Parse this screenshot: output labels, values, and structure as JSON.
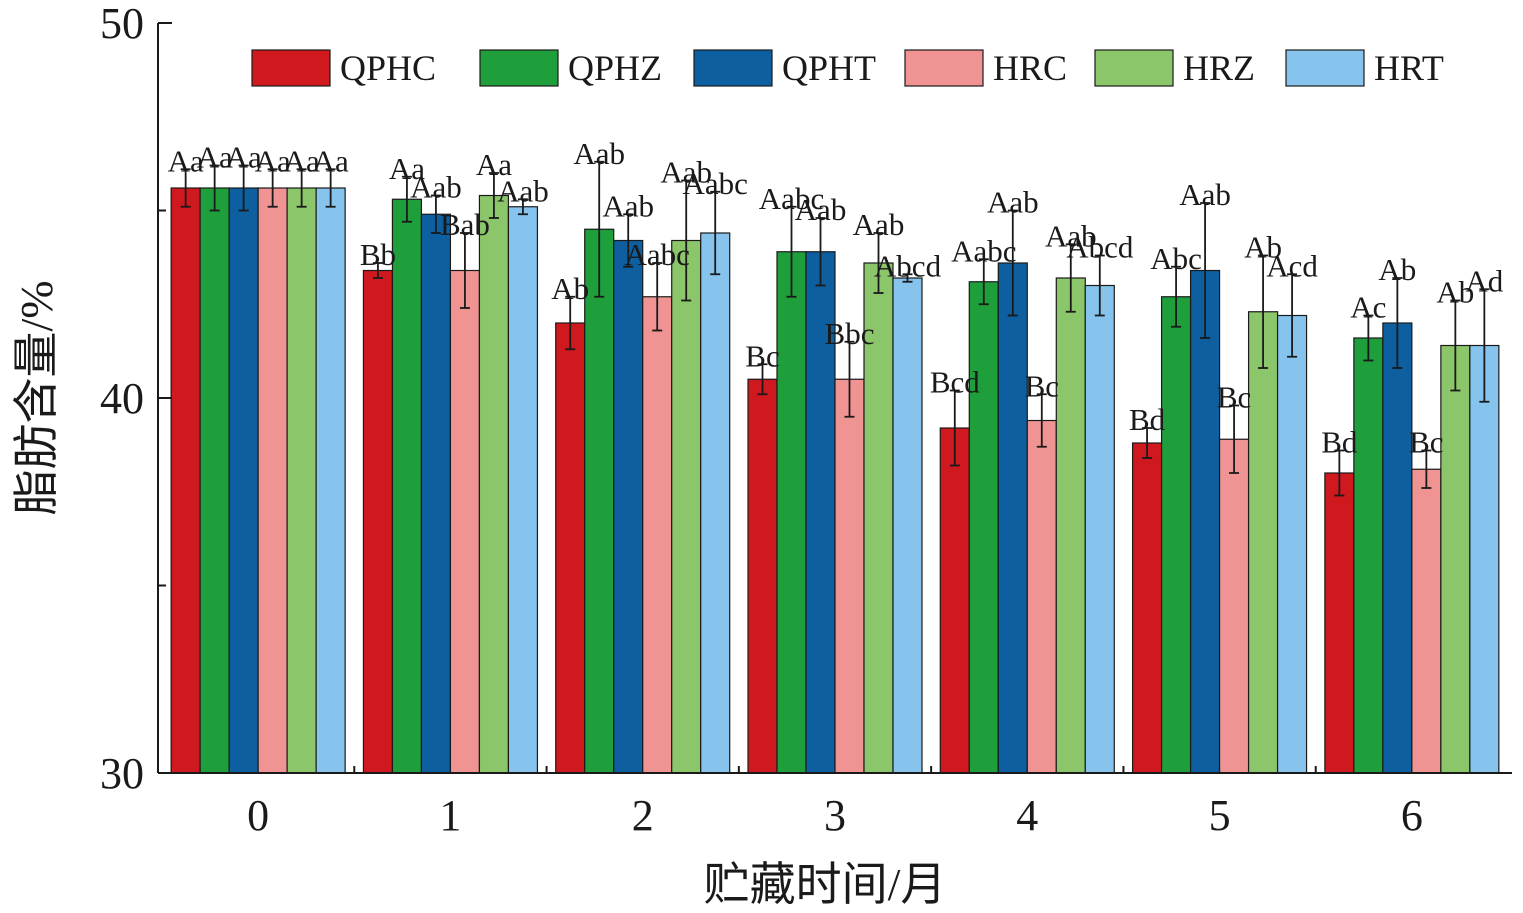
{
  "chart_data": {
    "type": "bar",
    "title": "",
    "xlabel": "贮藏时间/月",
    "ylabel": "脂肪含量/%",
    "ylim": [
      30,
      50
    ],
    "yticks": [
      30,
      40,
      50
    ],
    "categories": [
      "0",
      "1",
      "2",
      "3",
      "4",
      "5",
      "6"
    ],
    "legend_position": "top-right",
    "series": [
      {
        "name": "QPHC",
        "color": "#d0181f",
        "values": [
          45.6,
          43.4,
          42.0,
          40.5,
          39.2,
          38.8,
          38.0
        ],
        "errors": [
          0.5,
          0.2,
          0.7,
          0.4,
          1.0,
          0.4,
          0.6
        ],
        "labels": [
          "Aa",
          "Bb",
          "Ab",
          "Bc",
          "Bcd",
          "Bd",
          "Bd"
        ]
      },
      {
        "name": "QPHZ",
        "color": "#1f9e3c",
        "values": [
          45.6,
          45.3,
          44.5,
          43.9,
          43.1,
          42.7,
          41.6
        ],
        "errors": [
          0.6,
          0.6,
          1.8,
          1.2,
          0.6,
          0.8,
          0.6
        ],
        "labels": [
          "Aa",
          "Aa",
          "Aab",
          "Aabc",
          "Aabc",
          "Abc",
          "Ac"
        ]
      },
      {
        "name": "QPHT",
        "color": "#0d5f9f",
        "values": [
          45.6,
          44.9,
          44.2,
          43.9,
          43.6,
          43.4,
          42.0
        ],
        "errors": [
          0.6,
          0.5,
          0.7,
          0.9,
          1.4,
          1.8,
          1.2
        ],
        "labels": [
          "Aa",
          "Aab",
          "Aab",
          "Aab",
          "Aab",
          "Aab",
          "Ab"
        ]
      },
      {
        "name": "HRC",
        "color": "#ef9493",
        "values": [
          45.6,
          43.4,
          42.7,
          40.5,
          39.4,
          38.9,
          38.1
        ],
        "errors": [
          0.5,
          1.0,
          0.9,
          1.0,
          0.7,
          0.9,
          0.5
        ],
        "labels": [
          "Aa",
          "Bab",
          "Aabc",
          "Bbc",
          "Bc",
          "Bc",
          "Bc"
        ]
      },
      {
        "name": "HRZ",
        "color": "#8cc66a",
        "values": [
          45.6,
          45.4,
          44.2,
          43.6,
          43.2,
          42.3,
          41.4
        ],
        "errors": [
          0.5,
          0.6,
          1.6,
          0.8,
          0.9,
          1.5,
          1.2
        ],
        "labels": [
          "Aa",
          "Aa",
          "Aab",
          "Aab",
          "Aab",
          "Ab",
          "Ab"
        ]
      },
      {
        "name": "HRT",
        "color": "#86c4ee",
        "values": [
          45.6,
          45.1,
          44.4,
          43.2,
          43.0,
          42.2,
          41.4
        ],
        "errors": [
          0.5,
          0.2,
          1.1,
          0.1,
          0.8,
          1.1,
          1.5
        ],
        "labels": [
          "Aa",
          "Aab",
          "Aabc",
          "Abcd",
          "Abcd",
          "Acd",
          "Ad"
        ]
      }
    ]
  }
}
